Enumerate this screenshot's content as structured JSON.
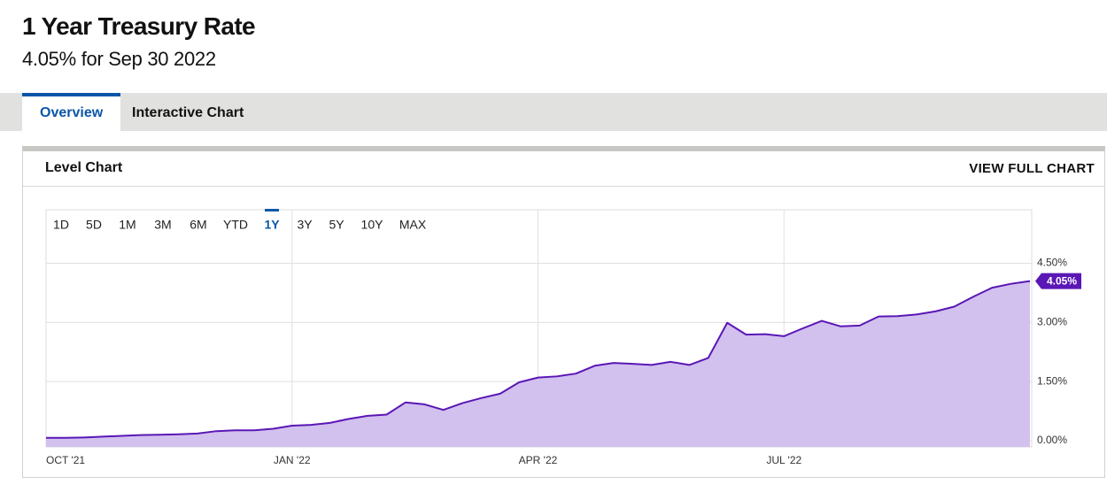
{
  "header": {
    "title": "1 Year Treasury Rate",
    "subtitle": "4.05% for Sep 30 2022"
  },
  "tabs": [
    "Overview",
    "Interactive Chart"
  ],
  "active_tab": 0,
  "panel": {
    "title": "Level Chart",
    "link": "VIEW FULL CHART"
  },
  "ranges": [
    "1D",
    "5D",
    "1M",
    "3M",
    "6M",
    "YTD",
    "1Y",
    "3Y",
    "5Y",
    "10Y",
    "MAX"
  ],
  "selected_range": 6,
  "chart_data": {
    "type": "area",
    "categories": [
      "OCT '21",
      null,
      null,
      null,
      null,
      null,
      null,
      null,
      null,
      null,
      null,
      null,
      null,
      "JAN '22",
      null,
      null,
      null,
      null,
      null,
      null,
      null,
      null,
      null,
      null,
      null,
      null,
      "APR '22",
      null,
      null,
      null,
      null,
      null,
      null,
      null,
      null,
      null,
      null,
      null,
      null,
      "JUL '22",
      null,
      null,
      null,
      null,
      null,
      null,
      null,
      null,
      null,
      null,
      null,
      null,
      null
    ],
    "values": [
      0.07,
      0.07,
      0.08,
      0.1,
      0.12,
      0.14,
      0.15,
      0.16,
      0.18,
      0.24,
      0.26,
      0.26,
      0.3,
      0.38,
      0.4,
      0.45,
      0.55,
      0.63,
      0.66,
      0.97,
      0.92,
      0.78,
      0.95,
      1.08,
      1.19,
      1.48,
      1.6,
      1.63,
      1.7,
      1.9,
      1.97,
      1.95,
      1.92,
      2.0,
      1.92,
      2.1,
      2.99,
      2.69,
      2.7,
      2.65,
      2.85,
      3.04,
      2.9,
      2.92,
      3.15,
      3.16,
      3.2,
      3.28,
      3.4,
      3.65,
      3.88,
      3.98,
      4.05
    ],
    "value_labels": [
      null,
      null,
      null,
      null,
      null,
      null,
      null,
      null,
      null,
      null,
      null,
      null,
      null,
      null,
      null,
      null,
      null,
      null,
      null,
      null,
      null,
      null,
      null,
      null,
      null,
      null,
      null,
      null,
      null,
      null,
      null,
      null,
      null,
      null,
      null,
      null,
      null,
      null,
      null,
      null,
      null,
      null,
      null,
      null,
      null,
      null,
      null,
      null,
      null,
      null,
      null,
      null,
      "4.05%"
    ],
    "color": "#5a17b5",
    "fill_color": "#d2c0ef",
    "ylim": [
      -0.16,
      5.86
    ],
    "yticks": [
      {
        "value": 0,
        "label": "0.00%"
      },
      {
        "value": 1.5,
        "label": "1.50%"
      },
      {
        "value": 3,
        "label": "3.00%"
      },
      {
        "value": 4.5,
        "label": "4.50%"
      }
    ],
    "grid": true
  }
}
